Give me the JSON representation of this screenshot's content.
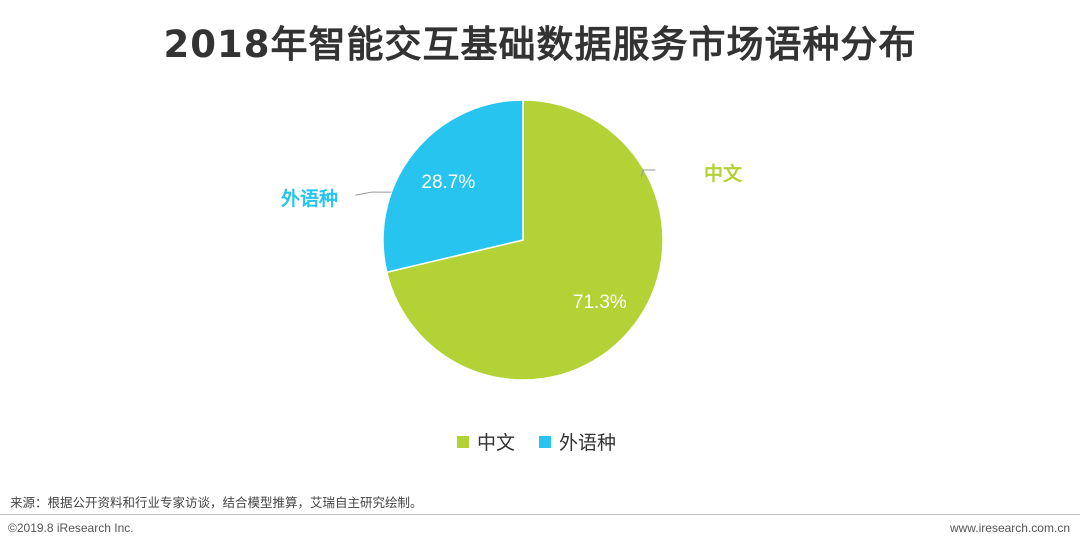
{
  "chart_data": {
    "type": "pie",
    "title": "2018年智能交互基础数据服务市场语种分布",
    "series": [
      {
        "name": "中文",
        "value": 71.3,
        "label": "71.3%",
        "color": "#b2d235"
      },
      {
        "name": "外语种",
        "value": 28.7,
        "label": "28.7%",
        "color": "#27c4ef"
      }
    ],
    "legend": {
      "placement": "bottom",
      "items": [
        "中文",
        "外语种"
      ]
    }
  },
  "footer": {
    "source": "来源：根据公开资料和行业专家访谈，结合模型推算，艾瑞自主研究绘制。",
    "copyright": "©2019.8 iResearch Inc.",
    "website": "www.iresearch.com.cn"
  }
}
